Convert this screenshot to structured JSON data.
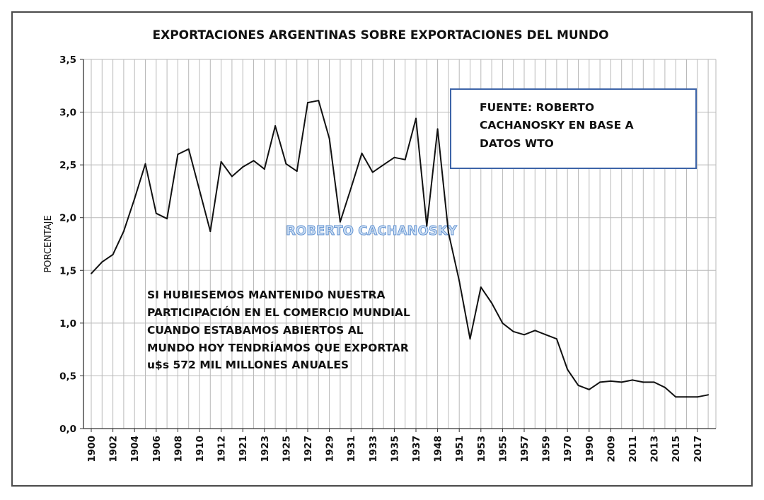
{
  "chart_data": {
    "type": "line",
    "title": "EXPORTACIONES ARGENTINAS SOBRE EXPORTACIONES DEL MUNDO",
    "ylabel": "PORCENTAJE",
    "xlabel": "",
    "ylim": [
      0,
      3.5
    ],
    "y_ticks": [
      "0,0",
      "0,5",
      "1,0",
      "1,5",
      "2,0",
      "2,5",
      "3,0",
      "3,5"
    ],
    "x_tick_labels": [
      "1900",
      "1902",
      "1904",
      "1906",
      "1908",
      "1910",
      "1912",
      "1921",
      "1923",
      "1925",
      "1927",
      "1929",
      "1931",
      "1933",
      "1935",
      "1937",
      "1948",
      "1951",
      "1953",
      "1955",
      "1957",
      "1959",
      "1970",
      "1990",
      "2009",
      "2011",
      "2013",
      "2015",
      "2017"
    ],
    "grid": true,
    "series": [
      {
        "values": [
          1.47,
          1.58,
          1.65,
          1.87,
          2.18,
          2.51,
          2.04,
          1.99,
          2.6,
          2.65,
          2.26,
          1.87,
          2.53,
          2.39,
          2.48,
          2.54,
          2.46,
          2.87,
          2.51,
          2.44,
          3.09,
          3.11,
          2.75,
          1.96,
          2.28,
          2.61,
          2.43,
          2.5,
          2.57,
          2.55,
          2.94,
          1.92,
          2.84,
          1.86,
          1.4,
          0.85,
          1.34,
          1.19,
          1.0,
          0.92,
          0.89,
          0.93,
          0.89,
          0.85,
          0.56,
          0.41,
          0.37,
          0.44,
          0.45,
          0.44,
          0.46,
          0.44,
          0.44,
          0.39,
          0.3,
          0.3,
          0.3,
          0.32
        ]
      }
    ],
    "annotations": {
      "source_box": [
        "FUENTE: ROBERTO",
        "CACHANOSKY EN BASE A",
        "DATOS WTO"
      ],
      "watermark": "ROBERTO CACHANOSKY",
      "note": [
        "SI HUBIESEMOS MANTENIDO NUESTRA",
        "PARTICIPACIÓN EN EL COMERCIO MUNDIAL",
        "CUANDO ESTABAMOS ABIERTOS AL",
        "MUNDO HOY TENDRÍAMOS QUE EXPORTAR",
        "u$s 572 MIL  MILLONES ANUALES"
      ]
    },
    "colors": {
      "line": "#111111",
      "grid": "#b9b9b9",
      "source_box_border": "#3d64a8",
      "watermark_fill": "#c9dcf2",
      "watermark_stroke": "#5d8fd0"
    }
  }
}
